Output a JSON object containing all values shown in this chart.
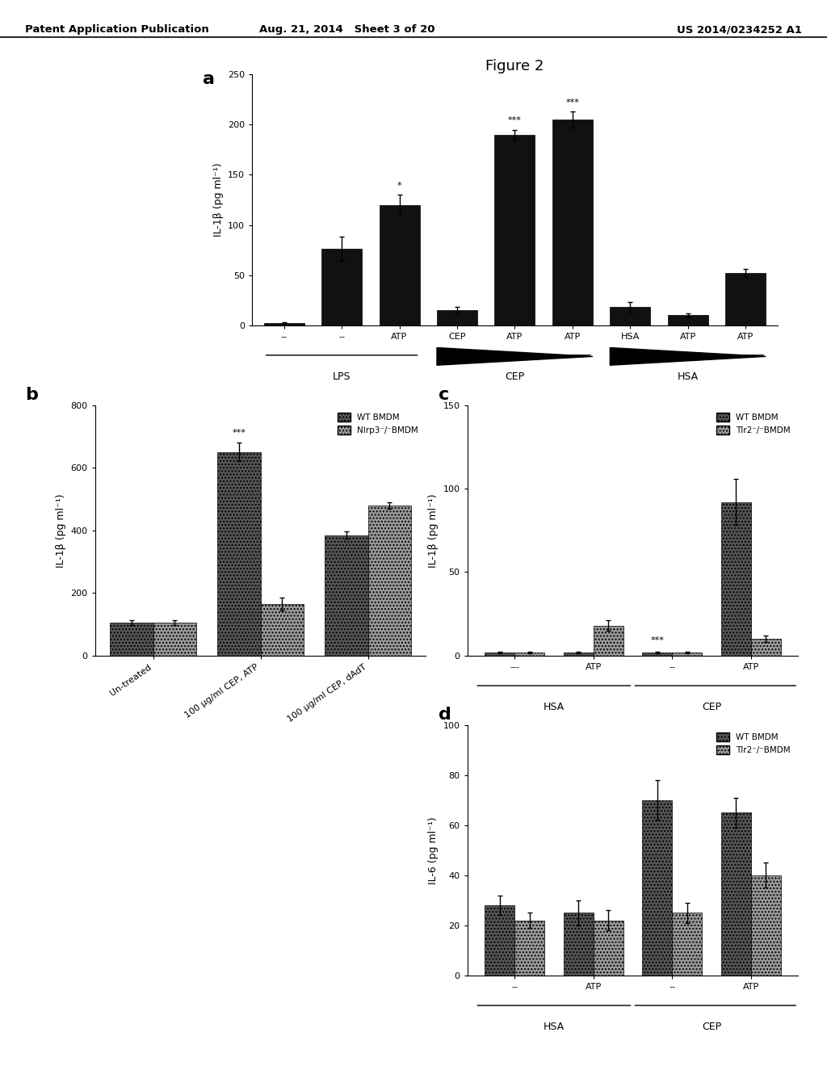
{
  "panel_a": {
    "title": "Figure 2",
    "label": "a",
    "ylabel": "IL-1β (pg ml⁻¹)",
    "ylim": [
      0,
      250
    ],
    "yticks": [
      0,
      50,
      100,
      150,
      200,
      250
    ],
    "bars": [
      2,
      76,
      120,
      15,
      190,
      205,
      18,
      10,
      52
    ],
    "errors": [
      1,
      12,
      10,
      3,
      5,
      8,
      5,
      2,
      4
    ],
    "bar_color": "#111111",
    "xtick_labels": [
      "--",
      "--",
      "ATP",
      "CEP",
      "ATP",
      "ATP",
      "HSA",
      "ATP",
      "ATP"
    ],
    "significance": [
      {
        "bar_idx": 2,
        "text": "*"
      },
      {
        "bar_idx": 4,
        "text": "***"
      },
      {
        "bar_idx": 5,
        "text": "***"
      }
    ],
    "lps_label": "LPS",
    "cep_label": "CEP",
    "hsa_label": "HSA"
  },
  "panel_b": {
    "label": "b",
    "ylabel": "IL-1β (pg ml⁻¹)",
    "ylim": [
      0,
      800
    ],
    "yticks": [
      0,
      200,
      400,
      600,
      800
    ],
    "groups": [
      "Un-treated",
      "100 μg/ml CEP, ATP",
      "100 μg/ml CEP, dAdT"
    ],
    "wt_values": [
      105,
      650,
      385
    ],
    "wt_errors": [
      8,
      30,
      12
    ],
    "ko_values": [
      105,
      165,
      480
    ],
    "ko_errors": [
      8,
      20,
      10
    ],
    "wt_color": "#555555",
    "ko_color": "#999999",
    "legend_wt": "WT BMDM",
    "legend_ko": "Nlrp3⁻/⁻BMDM",
    "significance": [
      {
        "group_idx": 1,
        "text": "***"
      }
    ]
  },
  "panel_c": {
    "label": "c",
    "ylabel": "IL-1β (pg ml⁻¹)",
    "ylim": [
      0,
      150
    ],
    "yticks": [
      0,
      50,
      100,
      150
    ],
    "xtick_labels_hsa": [
      "---",
      "ATP"
    ],
    "xtick_labels_cep": [
      "--",
      "ATP"
    ],
    "wt_values": [
      2,
      2,
      2,
      92
    ],
    "wt_errors": [
      0.5,
      0.5,
      0.5,
      14
    ],
    "ko_values": [
      2,
      18,
      2,
      10
    ],
    "ko_errors": [
      0.5,
      3,
      0.5,
      2
    ],
    "wt_color": "#555555",
    "ko_color": "#999999",
    "legend_wt": "WT BMDM",
    "legend_ko": "Tlr2⁻/⁻BMDM",
    "significance": [
      {
        "group_idx": 2,
        "text": "***"
      }
    ],
    "group_labels": [
      "HSA",
      "CEP"
    ],
    "xtick_labels": [
      "---",
      "ATP",
      "--",
      "ATP"
    ]
  },
  "panel_d": {
    "label": "d",
    "ylabel": "IL-6 (pg ml⁻¹)",
    "ylim": [
      0,
      100
    ],
    "yticks": [
      0,
      20,
      40,
      60,
      80,
      100
    ],
    "wt_values": [
      28,
      25,
      70,
      65
    ],
    "wt_errors": [
      4,
      5,
      8,
      6
    ],
    "ko_values": [
      22,
      22,
      25,
      40
    ],
    "ko_errors": [
      3,
      4,
      4,
      5
    ],
    "wt_color": "#555555",
    "ko_color": "#999999",
    "legend_wt": "WT BMDM",
    "legend_ko": "Tlr2⁻/⁻BMDM",
    "group_labels": [
      "HSA",
      "CEP"
    ],
    "xtick_labels": [
      "--",
      "ATP",
      "--",
      "ATP"
    ]
  },
  "header": {
    "left": "Patent Application Publication",
    "center": "Aug. 21, 2014   Sheet 3 of 20",
    "right": "US 2014/0234252 A1"
  },
  "bg_color": "#ffffff"
}
